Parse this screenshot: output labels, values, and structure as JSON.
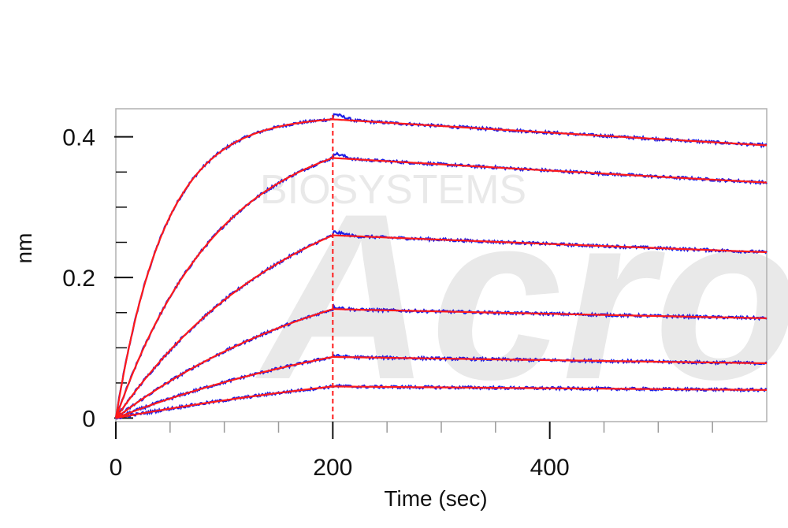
{
  "chart_data": {
    "type": "line",
    "title": "",
    "xlabel": "Time (sec)",
    "ylabel": "nm",
    "xlim": [
      0,
      600
    ],
    "ylim": [
      -0.005,
      0.44
    ],
    "x_ticks": [
      0,
      200,
      400
    ],
    "x_tick_labels": [
      "0",
      "200",
      "400"
    ],
    "y_ticks": [
      0,
      0.2,
      0.4
    ],
    "y_tick_labels": [
      "0",
      "0.2",
      "0.4"
    ],
    "x_minor_ticks": [
      50,
      100,
      150,
      250,
      300,
      350,
      450,
      500,
      550
    ],
    "y_minor_ticks": [
      0.05,
      0.1,
      0.15,
      0.25,
      0.3,
      0.35
    ],
    "dissociation_start": 200,
    "grid": false,
    "legend": "none",
    "watermark": {
      "logo": "Acro",
      "text": "BIOSYSTEMS"
    },
    "colors": {
      "measured": "#1f1fe6",
      "fit": "#ff1a1a",
      "marker": "#ff1a1a",
      "axis": "#b0b0b0"
    },
    "series": [
      {
        "plateau_at_200": 0.425,
        "kon_rate": 0.022,
        "end_value": 0.388
      },
      {
        "plateau_at_200": 0.37,
        "kon_rate": 0.0105,
        "end_value": 0.335
      },
      {
        "plateau_at_200": 0.26,
        "kon_rate": 0.006,
        "end_value": 0.236
      },
      {
        "plateau_at_200": 0.155,
        "kon_rate": 0.0045,
        "end_value": 0.142
      },
      {
        "plateau_at_200": 0.087,
        "kon_rate": 0.0035,
        "end_value": 0.078
      },
      {
        "plateau_at_200": 0.045,
        "kon_rate": 0.0025,
        "end_value": 0.04
      }
    ]
  }
}
